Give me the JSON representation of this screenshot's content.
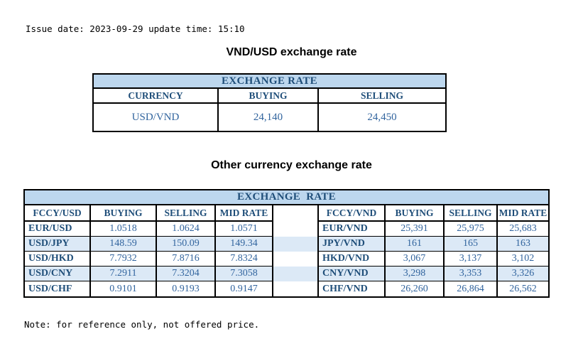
{
  "page": {
    "issue_line": "Issue date: 2023-09-29 update time: 15:10",
    "note_line": "Note: for reference only, not offered price."
  },
  "usd_table": {
    "title": "VND/USD exchange rate",
    "banner": "EXCHANGE RATE",
    "headers": [
      "CURRENCY",
      "BUYING",
      "SELLING"
    ],
    "row": {
      "currency": "USD/VND",
      "buying": "24,140",
      "selling": "24,450"
    }
  },
  "other_table": {
    "title": "Other currency exchange rate",
    "banner": "EXCHANGE  RATE",
    "left": {
      "headers": [
        "FCCY/USD",
        "BUYING",
        "SELLING",
        "MID RATE"
      ],
      "rows": [
        {
          "pair": "EUR/USD",
          "buying": "1.0518",
          "selling": "1.0624",
          "mid": "1.0571"
        },
        {
          "pair": "USD/JPY",
          "buying": "148.59",
          "selling": "150.09",
          "mid": "149.34"
        },
        {
          "pair": "USD/HKD",
          "buying": "7.7932",
          "selling": "7.8716",
          "mid": "7.8324"
        },
        {
          "pair": "USD/CNY",
          "buying": "7.2911",
          "selling": "7.3204",
          "mid": "7.3058"
        },
        {
          "pair": "USD/CHF",
          "buying": "0.9101",
          "selling": "0.9193",
          "mid": "0.9147"
        }
      ]
    },
    "right": {
      "headers": [
        "FCCY/VND",
        "BUYING",
        "SELLING",
        "MID RATE"
      ],
      "rows": [
        {
          "pair": "EUR/VND",
          "buying": "25,391",
          "selling": "25,975",
          "mid": "25,683"
        },
        {
          "pair": "JPY/VND",
          "buying": "161",
          "selling": "165",
          "mid": "163"
        },
        {
          "pair": "HKD/VND",
          "buying": "3,067",
          "selling": "3,137",
          "mid": "3,102"
        },
        {
          "pair": "CNY/VND",
          "buying": "3,298",
          "selling": "3,353",
          "mid": "3,326"
        },
        {
          "pair": "CHF/VND",
          "buying": "26,260",
          "selling": "26,864",
          "mid": "26,562"
        }
      ]
    }
  },
  "colors": {
    "banner_bg": "#BDD7EE",
    "stripe_bg": "#DCE9F6",
    "header_text": "#1F4E79",
    "value_text": "#31649E",
    "border": "#000000"
  }
}
